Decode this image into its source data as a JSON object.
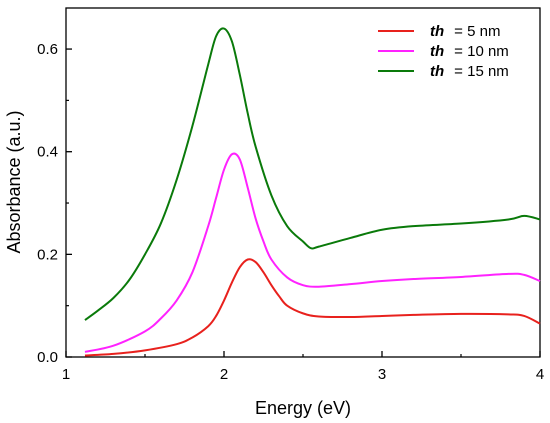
{
  "chart_data": {
    "type": "line",
    "xlabel": "Energy (eV)",
    "ylabel": "Absorbance (a.u.)",
    "xlim": [
      1,
      4
    ],
    "ylim": [
      0,
      0.68
    ],
    "x_ticks": [
      "1",
      "2",
      "3",
      "4"
    ],
    "y_ticks": [
      "0.0",
      "0.2",
      "0.4",
      "0.6"
    ],
    "grid": false,
    "legend_position": "top-right",
    "series": [
      {
        "name": "th = 5 nm",
        "legend_var": "th",
        "legend_value": "= 5 nm",
        "color": "#e8211d",
        "x": [
          1.12,
          1.3,
          1.5,
          1.7,
          1.8,
          1.9,
          1.95,
          2.0,
          2.05,
          2.1,
          2.15,
          2.2,
          2.25,
          2.3,
          2.35,
          2.4,
          2.5,
          2.6,
          2.8,
          3.0,
          3.2,
          3.5,
          3.8,
          3.9,
          4.0
        ],
        "y": [
          0.003,
          0.006,
          0.013,
          0.025,
          0.038,
          0.06,
          0.08,
          0.11,
          0.145,
          0.175,
          0.19,
          0.185,
          0.165,
          0.14,
          0.118,
          0.1,
          0.085,
          0.079,
          0.078,
          0.08,
          0.082,
          0.084,
          0.083,
          0.08,
          0.065
        ]
      },
      {
        "name": "th = 10 nm",
        "legend_var": "th",
        "legend_value": "= 10 nm",
        "color": "#ff22ff",
        "x": [
          1.12,
          1.3,
          1.5,
          1.6,
          1.7,
          1.8,
          1.9,
          1.95,
          2.0,
          2.05,
          2.1,
          2.15,
          2.2,
          2.25,
          2.3,
          2.4,
          2.5,
          2.6,
          2.8,
          3.0,
          3.2,
          3.5,
          3.8,
          3.9,
          4.0
        ],
        "y": [
          0.01,
          0.022,
          0.05,
          0.075,
          0.11,
          0.165,
          0.255,
          0.31,
          0.365,
          0.395,
          0.385,
          0.33,
          0.27,
          0.225,
          0.19,
          0.155,
          0.14,
          0.137,
          0.142,
          0.148,
          0.152,
          0.156,
          0.162,
          0.16,
          0.148
        ]
      },
      {
        "name": "th = 15 nm",
        "legend_var": "th",
        "legend_value": "= 15 nm",
        "color": "#0a7a0a",
        "x": [
          1.12,
          1.2,
          1.3,
          1.4,
          1.5,
          1.6,
          1.7,
          1.8,
          1.9,
          1.95,
          2.0,
          2.05,
          2.1,
          2.15,
          2.2,
          2.3,
          2.4,
          2.5,
          2.55,
          2.6,
          2.8,
          3.0,
          3.2,
          3.5,
          3.8,
          3.9,
          4.0
        ],
        "y": [
          0.072,
          0.09,
          0.115,
          0.15,
          0.2,
          0.26,
          0.345,
          0.45,
          0.57,
          0.625,
          0.64,
          0.615,
          0.55,
          0.475,
          0.41,
          0.315,
          0.255,
          0.225,
          0.212,
          0.215,
          0.232,
          0.248,
          0.255,
          0.26,
          0.268,
          0.275,
          0.268
        ]
      }
    ]
  }
}
